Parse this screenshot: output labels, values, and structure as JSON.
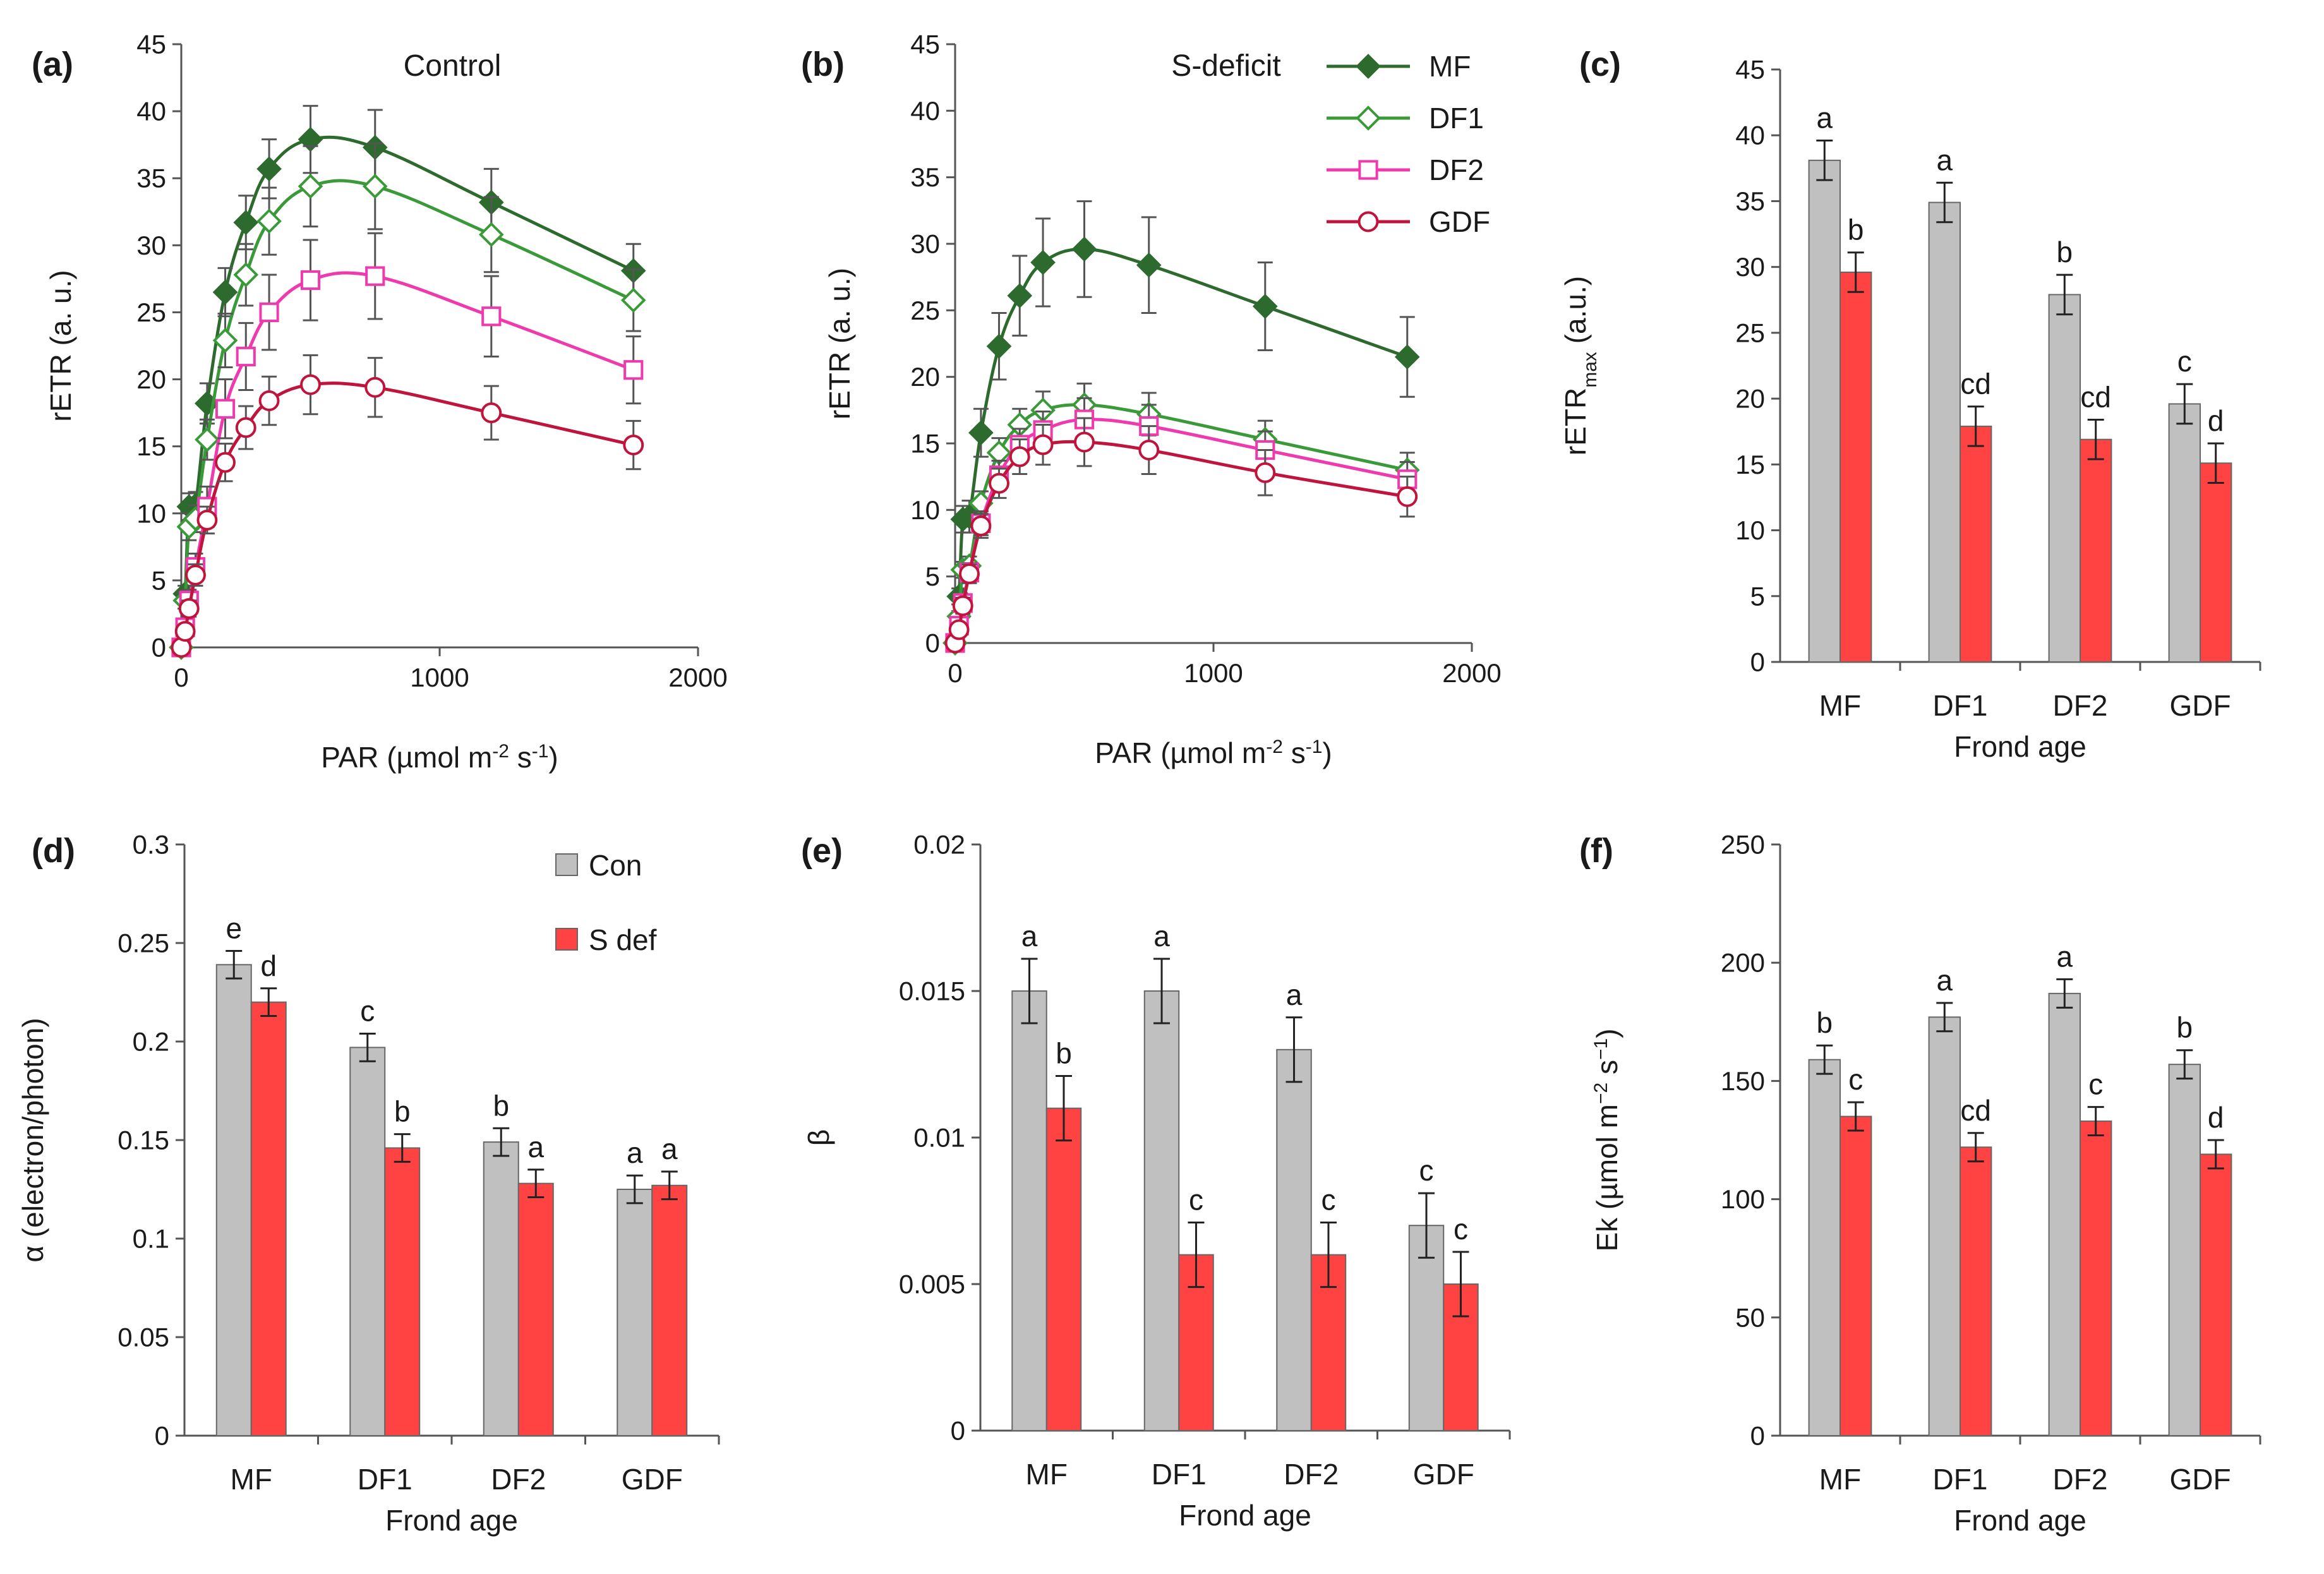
{
  "colors": {
    "MF": "#2d6a2d",
    "DF1": "#3a9a3a",
    "DF2": "#ee3aad",
    "GDF": "#c0143c",
    "con_bar": "#c0c0c0",
    "sdef_bar": "#ff4242",
    "axis": "#555555",
    "text": "#1a1a1a"
  },
  "legend_curve": {
    "items": [
      {
        "key": "MF",
        "label": "MF",
        "marker": "diamond",
        "fill": "filled"
      },
      {
        "key": "DF1",
        "label": "DF1",
        "marker": "diamond",
        "fill": "open"
      },
      {
        "key": "DF2",
        "label": "DF2",
        "marker": "square",
        "fill": "open"
      },
      {
        "key": "GDF",
        "label": "GDF",
        "marker": "circle",
        "fill": "open"
      }
    ]
  },
  "legend_bar": {
    "con": "Con",
    "sdef": "S def"
  },
  "chart_data": [
    {
      "panel": "(a)",
      "type": "line",
      "title": "Control",
      "xlabel": "PAR (µmol m-2 s-1)",
      "ylabel": "rETR (a. u.)",
      "xlim": [
        0,
        2000
      ],
      "ylim": [
        0,
        45
      ],
      "xticks": [
        "0",
        "1000",
        "2000"
      ],
      "yticks": [
        "0",
        "5",
        "10",
        "15",
        "20",
        "25",
        "30",
        "35",
        "40",
        "45"
      ],
      "x": [
        0,
        15,
        30,
        55,
        100,
        170,
        250,
        340,
        500,
        750,
        1200,
        1750
      ],
      "series": [
        {
          "name": "MF",
          "values": [
            0,
            4,
            10.5,
            10.6,
            18.2,
            26.5,
            31.7,
            35.7,
            37.9,
            37.3,
            33.2,
            28.1
          ],
          "error": [
            0,
            0.6,
            1.0,
            1.0,
            1.5,
            1.8,
            2.0,
            2.2,
            2.5,
            2.8,
            2.5,
            2.0
          ]
        },
        {
          "name": "DF1",
          "values": [
            0,
            3.5,
            9,
            9.6,
            15.5,
            22.9,
            27.8,
            31.8,
            34.4,
            34.4,
            30.8,
            25.9
          ],
          "error": [
            0,
            0.6,
            1.0,
            1.0,
            1.5,
            2.0,
            2.3,
            2.5,
            3.0,
            3.2,
            2.8,
            2.3
          ]
        },
        {
          "name": "DF2",
          "values": [
            0,
            1.5,
            3.5,
            6.0,
            10.5,
            17.8,
            21.7,
            25.0,
            27.4,
            27.7,
            24.7,
            20.7
          ],
          "error": [
            0,
            0.4,
            0.8,
            1.0,
            1.5,
            2.2,
            2.5,
            2.8,
            3.0,
            3.2,
            3.0,
            2.5
          ]
        },
        {
          "name": "GDF",
          "values": [
            0,
            1.2,
            2.9,
            5.4,
            9.5,
            13.8,
            16.4,
            18.4,
            19.6,
            19.4,
            17.5,
            15.1
          ],
          "error": [
            0,
            0.3,
            0.6,
            0.8,
            1.0,
            1.4,
            1.6,
            1.8,
            2.2,
            2.2,
            2.0,
            1.8
          ]
        }
      ]
    },
    {
      "panel": "(b)",
      "type": "line",
      "title": "S-deficit",
      "xlabel": "PAR (µmol m-2 s-1)",
      "ylabel": "rETR (a. u.)",
      "xlim": [
        0,
        2000
      ],
      "ylim": [
        0,
        45
      ],
      "xticks": [
        "0",
        "1000",
        "2000"
      ],
      "yticks": [
        "0",
        "5",
        "10",
        "15",
        "20",
        "25",
        "30",
        "35",
        "40",
        "45"
      ],
      "x": [
        0,
        15,
        30,
        55,
        100,
        170,
        250,
        340,
        500,
        750,
        1200,
        1750
      ],
      "series": [
        {
          "name": "MF",
          "values": [
            0,
            3.5,
            9.3,
            9.5,
            15.8,
            22.3,
            26.1,
            28.6,
            29.6,
            28.4,
            25.3,
            21.5
          ],
          "error": [
            0,
            0.6,
            1.0,
            1.2,
            1.8,
            2.5,
            3.0,
            3.3,
            3.6,
            3.6,
            3.3,
            3.0
          ]
        },
        {
          "name": "DF1",
          "values": [
            0,
            2,
            5.5,
            5.8,
            10.5,
            14.3,
            16.4,
            17.5,
            17.9,
            17.2,
            15.3,
            13.0
          ],
          "error": [
            0,
            0.4,
            0.6,
            0.7,
            0.9,
            1.1,
            1.2,
            1.4,
            1.6,
            1.6,
            1.4,
            1.3
          ]
        },
        {
          "name": "DF2",
          "values": [
            0,
            1.3,
            3.0,
            5.3,
            9.0,
            12.6,
            14.9,
            16.0,
            16.8,
            16.3,
            14.5,
            12.3
          ],
          "error": [
            0,
            0.3,
            0.6,
            0.7,
            0.9,
            1.1,
            1.2,
            1.4,
            1.6,
            1.6,
            1.4,
            1.3
          ]
        },
        {
          "name": "GDF",
          "values": [
            0,
            1.0,
            2.8,
            5.2,
            8.8,
            12.0,
            14.0,
            14.9,
            15.1,
            14.5,
            12.8,
            11.0
          ],
          "error": [
            0,
            0.3,
            0.6,
            0.7,
            0.9,
            1.1,
            1.3,
            1.5,
            1.8,
            1.8,
            1.7,
            1.5
          ]
        }
      ]
    },
    {
      "panel": "(c)",
      "type": "bar",
      "title": "",
      "xlabel": "Frond age",
      "ylabel": "rETRmax (a.u.)",
      "ylim": [
        0,
        45
      ],
      "yticks": [
        "0",
        "5",
        "10",
        "15",
        "20",
        "25",
        "30",
        "35",
        "40",
        "45"
      ],
      "categories": [
        "MF",
        "DF1",
        "DF2",
        "GDF"
      ],
      "series": [
        {
          "name": "Con",
          "values": [
            38.1,
            34.9,
            27.9,
            19.6
          ],
          "error": [
            1.5,
            1.5,
            1.5,
            1.5
          ],
          "letters": [
            "a",
            "a",
            "b",
            "c"
          ]
        },
        {
          "name": "S def",
          "values": [
            29.6,
            17.9,
            16.9,
            15.1
          ],
          "error": [
            1.5,
            1.5,
            1.5,
            1.5
          ],
          "letters": [
            "b",
            "cd",
            "cd",
            "d"
          ]
        }
      ]
    },
    {
      "panel": "(d)",
      "type": "bar",
      "title": "",
      "xlabel": "Frond age",
      "ylabel": "α (electron/photon)",
      "ylim": [
        0,
        0.3
      ],
      "yticks": [
        "0",
        "0.05",
        "0.1",
        "0.15",
        "0.2",
        "0.25",
        "0.3"
      ],
      "categories": [
        "MF",
        "DF1",
        "DF2",
        "GDF"
      ],
      "series": [
        {
          "name": "Con",
          "values": [
            0.239,
            0.197,
            0.149,
            0.125
          ],
          "error": [
            0.007,
            0.007,
            0.007,
            0.007
          ],
          "letters": [
            "e",
            "c",
            "b",
            "a"
          ]
        },
        {
          "name": "S def",
          "values": [
            0.22,
            0.146,
            0.128,
            0.127
          ],
          "error": [
            0.007,
            0.007,
            0.007,
            0.007
          ],
          "letters": [
            "d",
            "b",
            "a",
            "a"
          ]
        }
      ]
    },
    {
      "panel": "(e)",
      "type": "bar",
      "title": "",
      "xlabel": "Frond age",
      "ylabel": "β",
      "ylim": [
        0,
        0.02
      ],
      "yticks": [
        "0",
        "0.005",
        "0.01",
        "0.015",
        "0.02"
      ],
      "categories": [
        "MF",
        "DF1",
        "DF2",
        "GDF"
      ],
      "series": [
        {
          "name": "Con",
          "values": [
            0.015,
            0.015,
            0.013,
            0.007
          ],
          "error": [
            0.0011,
            0.0011,
            0.0011,
            0.0011
          ],
          "letters": [
            "a",
            "a",
            "a",
            "c"
          ]
        },
        {
          "name": "S def",
          "values": [
            0.011,
            0.006,
            0.006,
            0.005
          ],
          "error": [
            0.0011,
            0.0011,
            0.0011,
            0.0011
          ],
          "letters": [
            "b",
            "c",
            "c",
            "c"
          ]
        }
      ]
    },
    {
      "panel": "(f)",
      "type": "bar",
      "title": "",
      "xlabel": "Frond age",
      "ylabel": "Ek (µmol m−2 s−1)",
      "ylim": [
        0,
        250
      ],
      "yticks": [
        "0",
        "50",
        "100",
        "150",
        "200",
        "250"
      ],
      "categories": [
        "MF",
        "DF1",
        "DF2",
        "GDF"
      ],
      "series": [
        {
          "name": "Con",
          "values": [
            159,
            177,
            187,
            157
          ],
          "error": [
            6,
            6,
            6,
            6
          ],
          "letters": [
            "b",
            "a",
            "a",
            "b"
          ]
        },
        {
          "name": "S def",
          "values": [
            135,
            122,
            133,
            119
          ],
          "error": [
            6,
            6,
            6,
            6
          ],
          "letters": [
            "c",
            "cd",
            "c",
            "d"
          ]
        }
      ]
    }
  ]
}
